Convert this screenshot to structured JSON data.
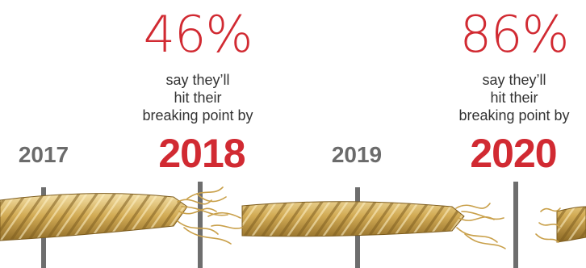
{
  "stats": [
    {
      "percent": "46%",
      "line1": "say they’ll",
      "line2": "hit their",
      "line3": "breaking point by"
    },
    {
      "percent": "86%",
      "line1": "say they’ll",
      "line2": "hit their",
      "line3": "breaking point by"
    }
  ],
  "years": [
    {
      "label": "2017",
      "emphasis": false
    },
    {
      "label": "2018",
      "emphasis": true
    },
    {
      "label": "2019",
      "emphasis": false
    },
    {
      "label": "2020",
      "emphasis": true
    }
  ],
  "colors": {
    "accent_red": "#d12a32",
    "year_gray": "#6b6b6b",
    "tick_gray": "#6e6e6e",
    "rope_gold": "#c8a24a",
    "rope_dark": "#8a6a26",
    "rope_light": "#f0d89a"
  }
}
